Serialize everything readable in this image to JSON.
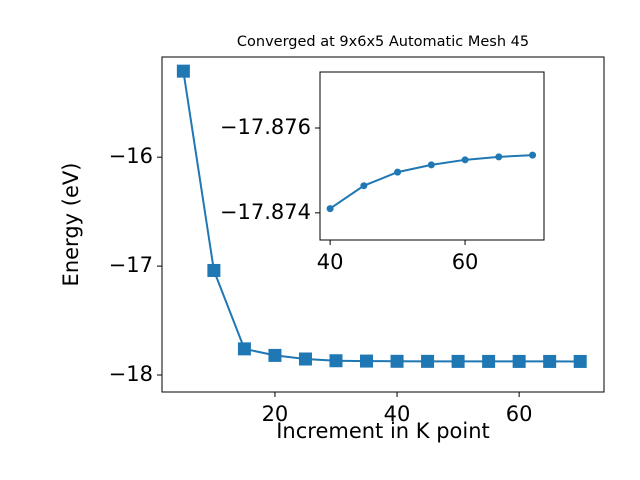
{
  "chart_data": [
    {
      "type": "line",
      "title": "Converged at 9x6x5 Automatic Mesh 45",
      "x_label": "Increment in K point",
      "y_label": "Energy (eV)",
      "x": [
        5,
        10,
        15,
        20,
        25,
        30,
        35,
        40,
        45,
        50,
        55,
        60,
        65,
        70
      ],
      "series": [
        {
          "color": "#1f77b4",
          "marker": "square",
          "values": [
            -15.21,
            -17.04,
            -17.76,
            -17.82,
            -17.853,
            -17.869,
            -17.872,
            -17.8741,
            -17.8746,
            -17.875,
            -17.8751,
            -17.8752,
            -17.8753,
            -17.8754
          ]
        }
      ],
      "xlim": [
        1.5,
        73.9
      ],
      "ylim": [
        -18.156,
        -15.08
      ],
      "xticks": [
        20,
        40,
        60
      ],
      "yticks": [
        {
          "value": -16,
          "label": "−16"
        },
        {
          "value": -17,
          "label": "−17"
        },
        {
          "value": -18,
          "label": "−18"
        }
      ]
    },
    {
      "type": "line",
      "x": [
        40,
        45,
        50,
        55,
        60,
        65,
        70
      ],
      "series": [
        {
          "color": "#1f77b4",
          "marker": "circle",
          "values": [
            -17.8741,
            -17.87464,
            -17.87496,
            -17.87513,
            -17.87525,
            -17.87532,
            -17.87536
          ]
        }
      ],
      "xlim": [
        38.5,
        71.7
      ],
      "ylim": [
        -17.87336,
        -17.87732
      ],
      "xticks": [
        40,
        60
      ],
      "yticks": [
        {
          "value": -17.876,
          "label": "−17.876"
        },
        {
          "value": -17.874,
          "label": "−17.874"
        }
      ]
    }
  ]
}
